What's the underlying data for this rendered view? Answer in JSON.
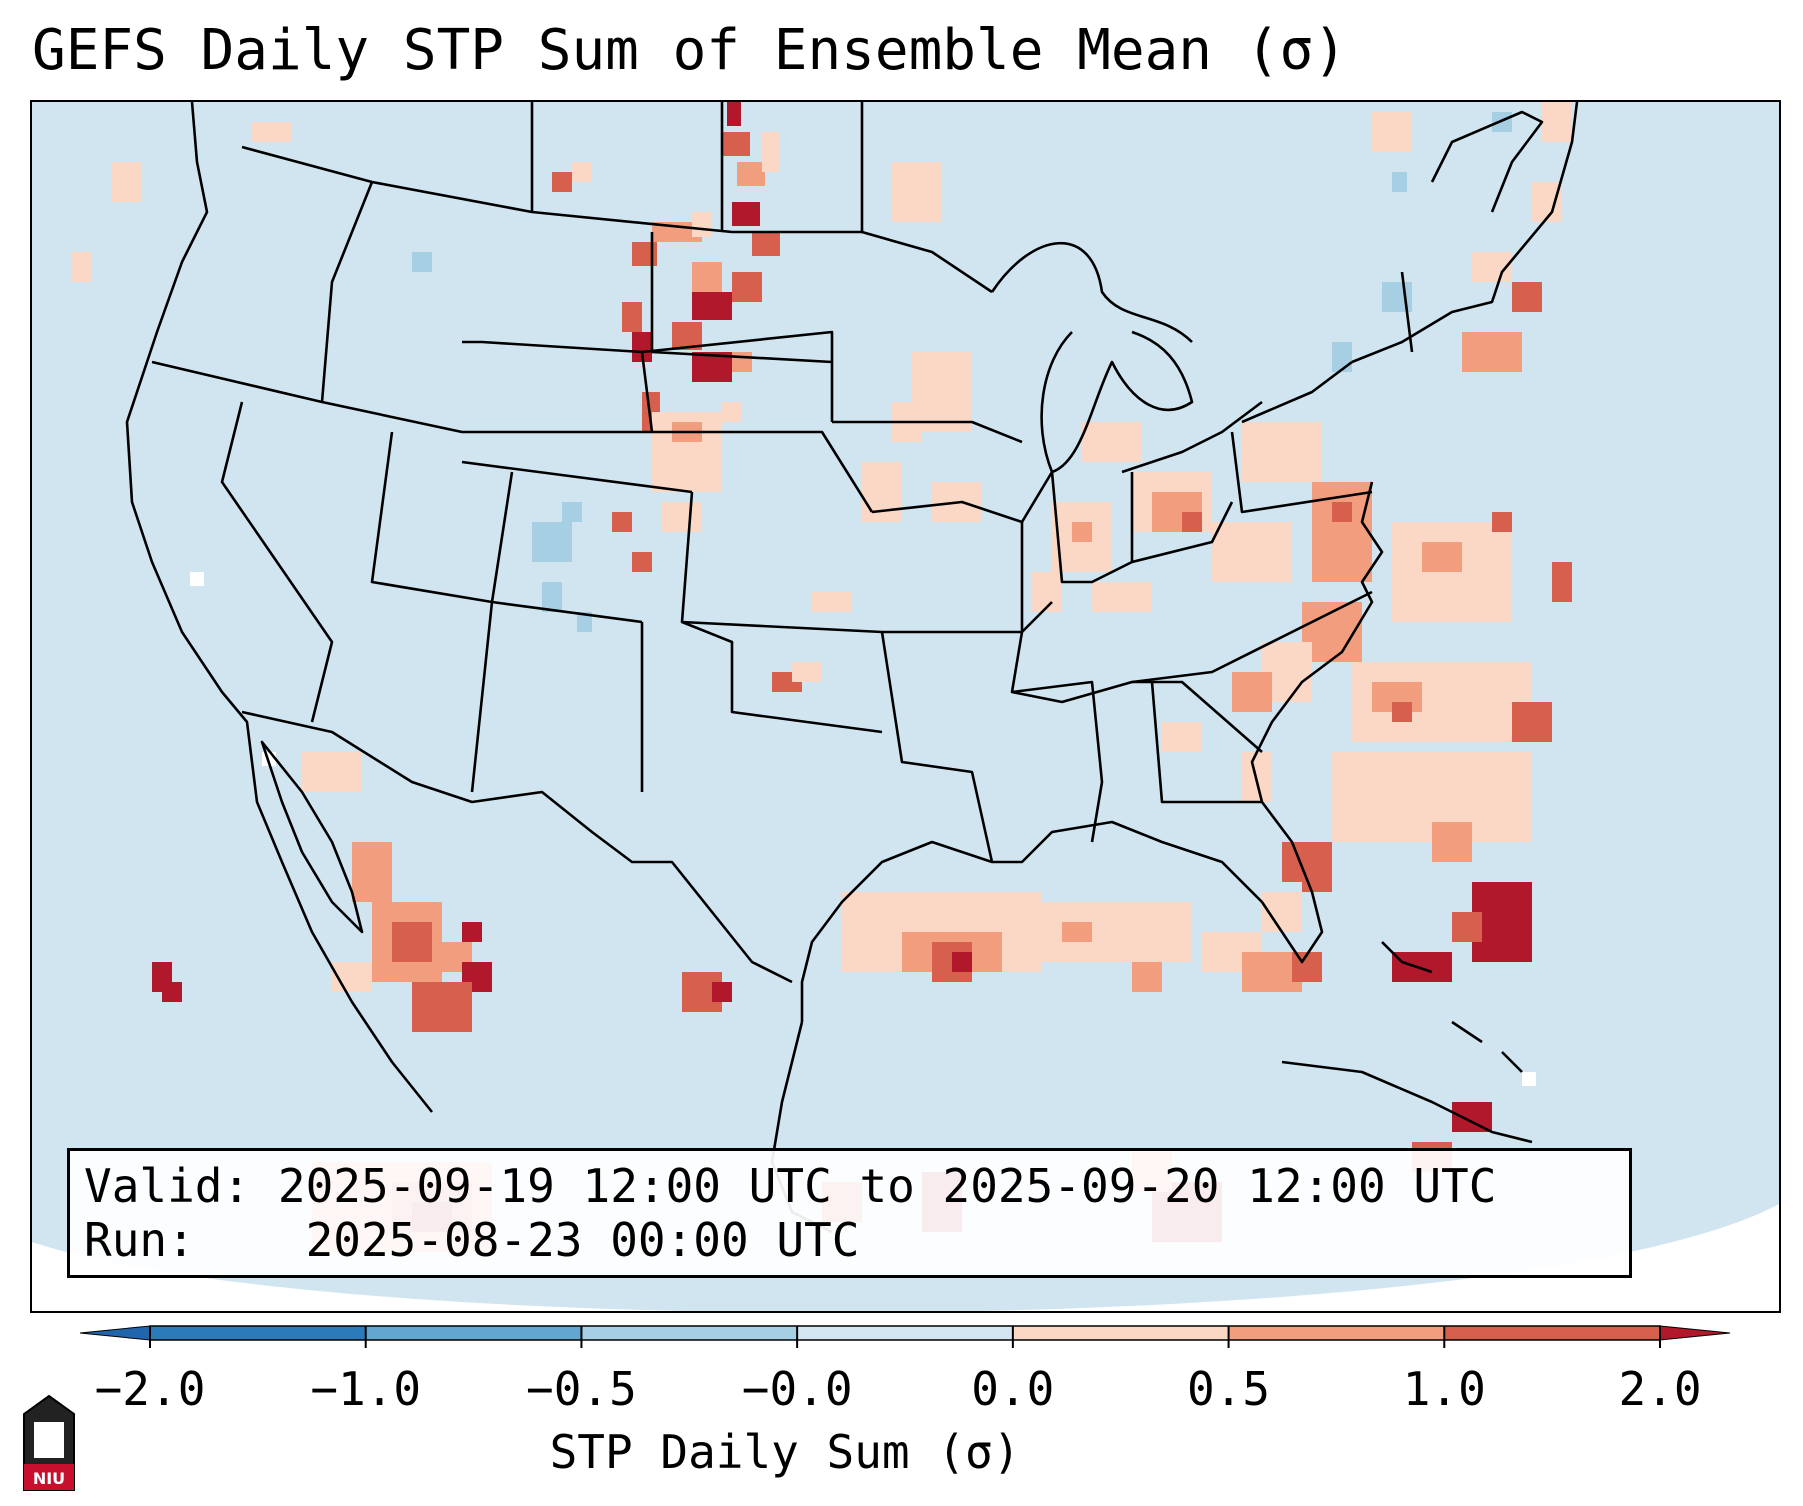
{
  "title": "GEFS Daily STP Sum of Ensemble Mean (σ)",
  "info": {
    "valid_label": "Valid:",
    "valid_value": "2025-09-19 12:00 UTC to 2025-09-20 12:00 UTC",
    "run_label": "Run:",
    "run_value": "2025-08-23 00:00 UTC"
  },
  "colorbar": {
    "label": "STP Daily Sum (σ)",
    "ticks": [
      "−2.0",
      "−1.0",
      "−0.5",
      "−0.0",
      "0.0",
      "0.5",
      "1.0",
      "2.0"
    ],
    "colors": [
      "#2b7bba",
      "#63a6d0",
      "#a6cfe4",
      "#d3e5f0",
      "#fbd8c6",
      "#f29e7e",
      "#d6604d",
      "#b2182b"
    ],
    "extend_low_color": "#2166ac",
    "extend_high_color": "#b2182b"
  },
  "map_background": "#d1e5f0",
  "logo_text": "NIU"
}
